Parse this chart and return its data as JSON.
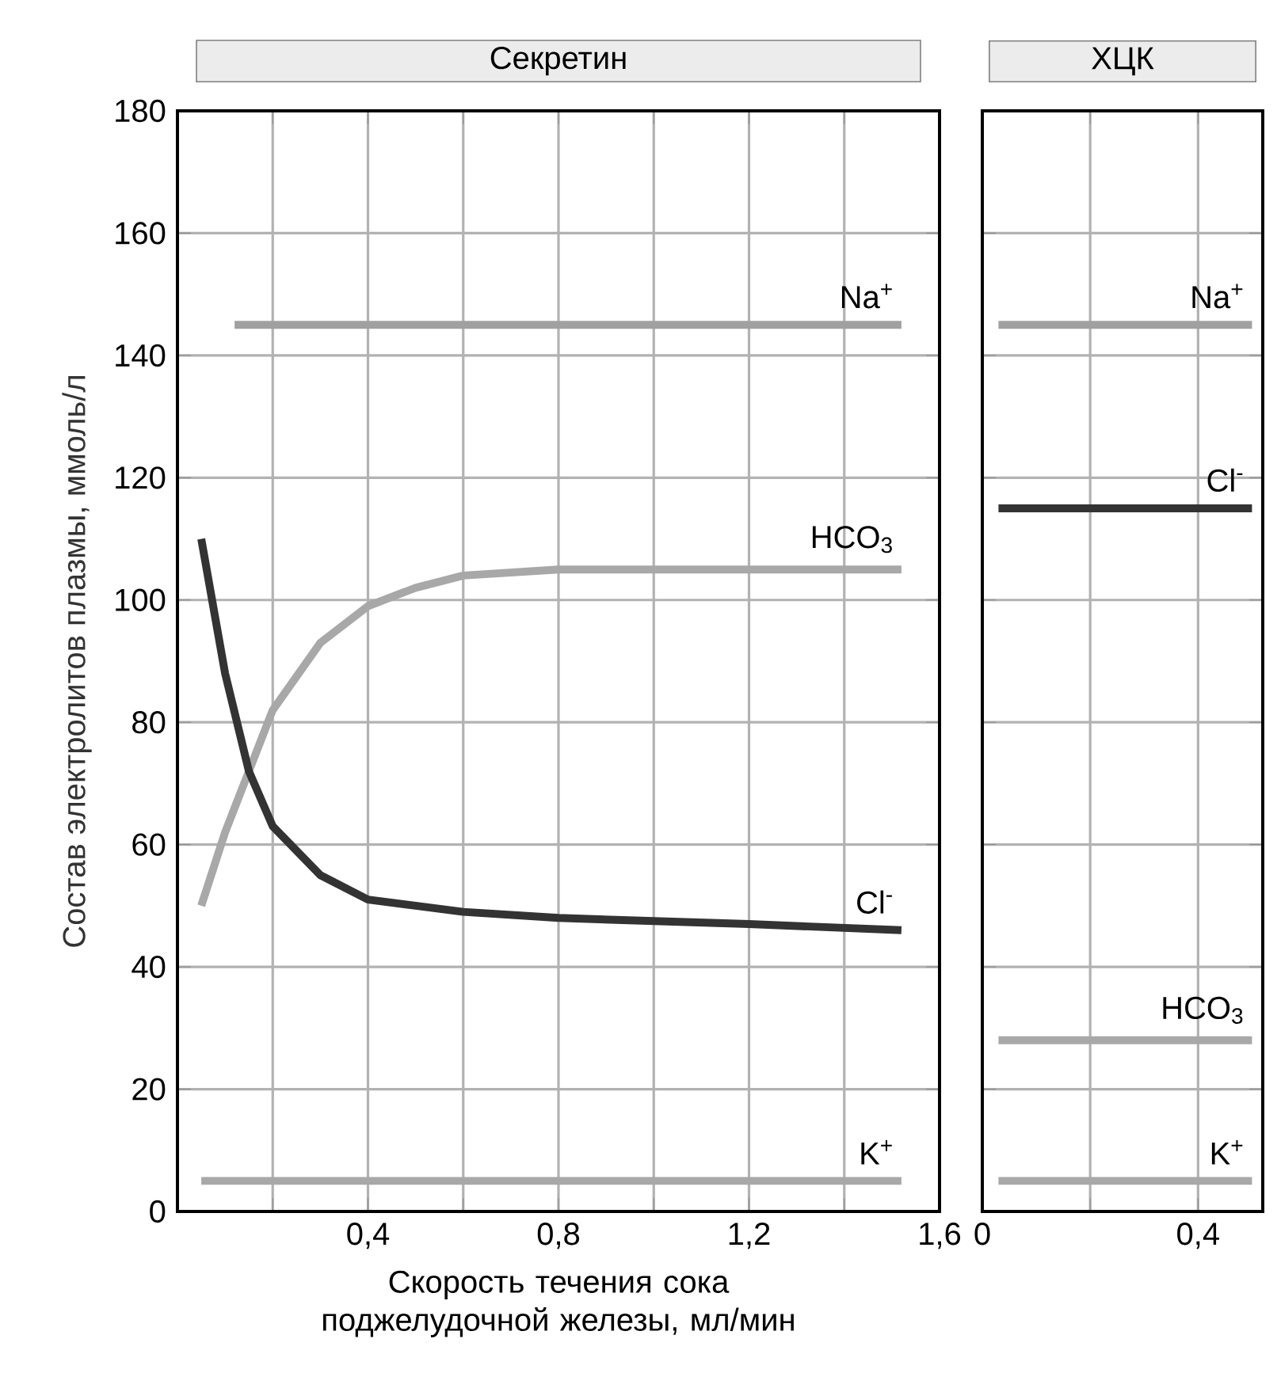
{
  "chart_data": [
    {
      "type": "line",
      "title": "Секретин",
      "xlabel": "Скорость течения сока поджелудочной железы, мл/мин",
      "ylabel": "Состав электролитов плазмы, ммоль/л",
      "xlim": [
        0,
        1.6
      ],
      "ylim": [
        0,
        180
      ],
      "xticks": [
        {
          "value": 0.2,
          "label": null
        },
        {
          "value": 0.4,
          "label": "0,4"
        },
        {
          "value": 0.6,
          "label": null
        },
        {
          "value": 0.8,
          "label": "0,8"
        },
        {
          "value": 1.0,
          "label": null
        },
        {
          "value": 1.2,
          "label": "1,2"
        },
        {
          "value": 1.4,
          "label": null
        },
        {
          "value": 1.6,
          "label": "1,6"
        }
      ],
      "yticks": [
        0,
        20,
        40,
        60,
        80,
        100,
        120,
        140,
        160,
        180
      ],
      "grid": true,
      "series": [
        {
          "name": "Na$^{+}$",
          "color": "#a0a0a0",
          "x": [
            0.12,
            1.52
          ],
          "values": [
            145,
            145
          ]
        },
        {
          "name": "HCO$_{3}$",
          "color": "#a8a8a8",
          "x": [
            0.05,
            0.1,
            0.15,
            0.2,
            0.3,
            0.4,
            0.5,
            0.6,
            0.8,
            1.0,
            1.2,
            1.52
          ],
          "values": [
            50,
            62,
            72,
            82,
            93,
            99,
            102,
            104,
            105,
            105,
            105,
            105
          ]
        },
        {
          "name": "Cl$^{-}$",
          "color": "#333333",
          "x": [
            0.05,
            0.1,
            0.15,
            0.2,
            0.3,
            0.4,
            0.5,
            0.6,
            0.8,
            1.0,
            1.2,
            1.52
          ],
          "values": [
            110,
            88,
            72,
            63,
            55,
            51,
            50,
            49,
            48,
            47.5,
            47,
            46
          ]
        },
        {
          "name": "K$^{+}$",
          "color": "#a8a8a8",
          "x": [
            0.05,
            1.52
          ],
          "values": [
            5,
            5
          ]
        }
      ]
    },
    {
      "type": "line",
      "title": "ХЦК",
      "xlim": [
        0,
        0.52
      ],
      "ylim": [
        0,
        180
      ],
      "xticks": [
        0,
        {
          "value": 0.2,
          "label": null
        },
        {
          "value": 0.4,
          "label": "0,4"
        }
      ],
      "yticks": [
        0,
        20,
        40,
        60,
        80,
        100,
        120,
        140,
        160,
        180
      ],
      "tick_labels": "x",
      "grid": true,
      "series": [
        {
          "name": "Na$^{+}$",
          "color": "#a0a0a0",
          "x": [
            0.03,
            0.5
          ],
          "values": [
            145,
            145
          ]
        },
        {
          "name": "Cl$^{-}$",
          "color": "#333333",
          "x": [
            0.03,
            0.5
          ],
          "values": [
            115,
            115
          ]
        },
        {
          "name": "HCO$_{3}$",
          "color": "#a8a8a8",
          "x": [
            0.03,
            0.5
          ],
          "values": [
            28,
            28
          ]
        },
        {
          "name": "K$^{+}$",
          "color": "#a8a8a8",
          "x": [
            0.03,
            0.5
          ],
          "values": [
            5,
            5
          ]
        }
      ]
    }
  ]
}
